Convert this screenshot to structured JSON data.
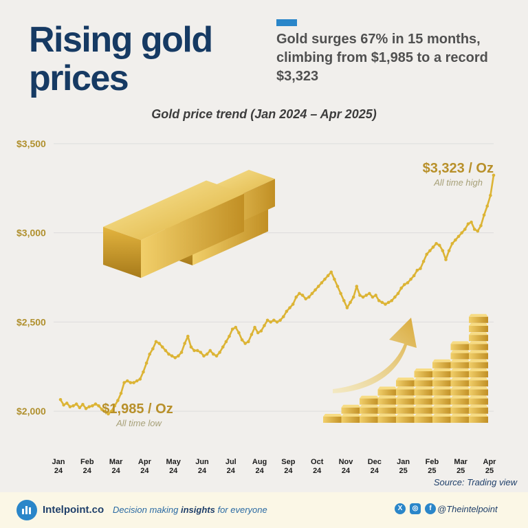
{
  "header": {
    "title_line1": "Rising gold",
    "title_line2": "prices",
    "subtitle": "Gold surges 67% in 15 months, climbing from $1,985 to a record $3,323"
  },
  "colors": {
    "title": "#163a63",
    "accent": "#2a86c9",
    "line": "#dcb435",
    "axis_label": "#b0902e",
    "annotation_note": "#a7a078",
    "footer_bg": "#fbf7e6"
  },
  "chart_data": {
    "type": "line",
    "title": "Gold price trend (Jan 2024 – Apr 2025)",
    "xlabel": "",
    "ylabel": "",
    "ylim": [
      1800,
      3550
    ],
    "yticks": [
      {
        "value": 2000,
        "label": "$2,000"
      },
      {
        "value": 2500,
        "label": "$2,500"
      },
      {
        "value": 3000,
        "label": "$3,000"
      },
      {
        "value": 3500,
        "label": "$3,500"
      }
    ],
    "xticks": [
      {
        "line1": "Jan",
        "line2": "24"
      },
      {
        "line1": "Feb",
        "line2": "24"
      },
      {
        "line1": "Mar",
        "line2": "24"
      },
      {
        "line1": "Apr",
        "line2": "24"
      },
      {
        "line1": "May",
        "line2": "24"
      },
      {
        "line1": "Jun",
        "line2": "24"
      },
      {
        "line1": "Jul",
        "line2": "24"
      },
      {
        "line1": "Aug",
        "line2": "24"
      },
      {
        "line1": "Sep",
        "line2": "24"
      },
      {
        "line1": "Oct",
        "line2": "24"
      },
      {
        "line1": "Nov",
        "line2": "24"
      },
      {
        "line1": "Dec",
        "line2": "24"
      },
      {
        "line1": "Jan",
        "line2": "25"
      },
      {
        "line1": "Feb",
        "line2": "25"
      },
      {
        "line1": "Mar",
        "line2": "25"
      },
      {
        "line1": "Apr",
        "line2": "25"
      }
    ],
    "grid": true,
    "legend": "none",
    "series": [
      {
        "values": [
          2065,
          2035,
          2045,
          2025,
          2030,
          2040,
          2020,
          2038,
          2015,
          2025,
          2030,
          2040,
          2030,
          2010,
          2000,
          1985,
          2000,
          2030,
          2060,
          2100,
          2160,
          2170,
          2160,
          2160,
          2170,
          2180,
          2220,
          2270,
          2320,
          2350,
          2390,
          2380,
          2360,
          2340,
          2320,
          2310,
          2300,
          2310,
          2330,
          2380,
          2420,
          2360,
          2340,
          2340,
          2330,
          2310,
          2320,
          2340,
          2320,
          2310,
          2330,
          2360,
          2390,
          2420,
          2460,
          2470,
          2440,
          2400,
          2380,
          2390,
          2430,
          2470,
          2440,
          2450,
          2480,
          2510,
          2500,
          2510,
          2500,
          2510,
          2530,
          2560,
          2580,
          2600,
          2640,
          2660,
          2650,
          2630,
          2640,
          2660,
          2680,
          2700,
          2720,
          2740,
          2760,
          2780,
          2740,
          2700,
          2660,
          2620,
          2580,
          2610,
          2640,
          2700,
          2650,
          2640,
          2650,
          2660,
          2640,
          2650,
          2620,
          2610,
          2600,
          2610,
          2620,
          2640,
          2660,
          2690,
          2710,
          2720,
          2740,
          2760,
          2790,
          2800,
          2840,
          2880,
          2900,
          2920,
          2940,
          2930,
          2900,
          2850,
          2900,
          2940,
          2960,
          2980,
          3000,
          3020,
          3050,
          3060,
          3020,
          3010,
          3040,
          3100,
          3150,
          3210,
          3323
        ]
      }
    ],
    "annotations": {
      "low": {
        "label": "$1,985 / Oz",
        "note": "All time low"
      },
      "high": {
        "label": "$3,323 / Oz",
        "note": "All time high"
      }
    }
  },
  "illustrations": {
    "gold_bars_icon": "gold-bars-stack",
    "growth_icon": "gold-bar-steps-with-up-arrow"
  },
  "footer": {
    "source": "Source: Trading view",
    "brand": "Intelpoint.co",
    "tagline_pre": "Decision making ",
    "tagline_bold": "insights",
    "tagline_post": " for everyone",
    "social_icons": [
      "x-icon",
      "instagram-icon",
      "facebook-icon"
    ],
    "handle": "@Theintelpoint"
  }
}
